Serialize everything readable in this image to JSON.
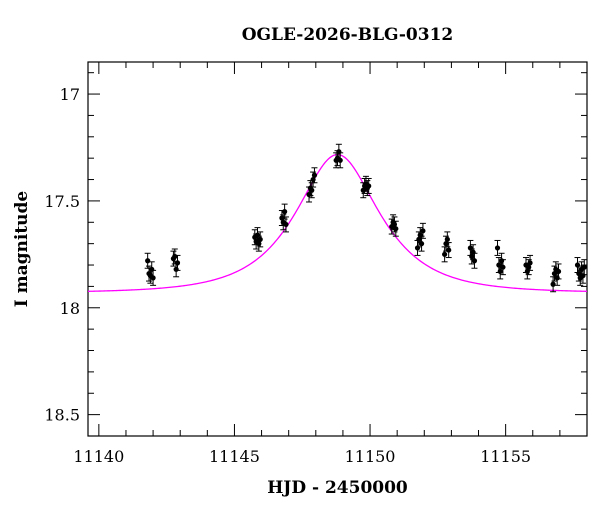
{
  "chart_data": {
    "type": "scatter",
    "title": "OGLE-2026-BLG-0312",
    "xlabel": "HJD - 2450000",
    "ylabel": "I magnitude",
    "xlim": [
      11139.6,
      11158.0
    ],
    "ylim": [
      18.6,
      16.85
    ],
    "y_inverted": true,
    "grid": false,
    "x_ticks": [
      11140,
      11145,
      11150,
      11155
    ],
    "y_ticks": [
      17,
      17.5,
      18,
      18.5
    ],
    "x_tick_labels": [
      "11140",
      "11145",
      "11150",
      "11155"
    ],
    "y_tick_labels": [
      "17",
      "17.5",
      "18",
      "18.5"
    ],
    "colors": {
      "points": "#000000",
      "model": "#ff00ff",
      "frame": "#000000"
    },
    "model": {
      "name": "",
      "type": "point-lens microlensing fit",
      "t0": 11148.8,
      "u0": 0.63,
      "tE": 2.35,
      "baseline_mag": 17.93
    },
    "series": [
      {
        "name": "",
        "x": [
          11141.8,
          11141.85,
          11141.9,
          11141.95,
          11142.0,
          11142.75,
          11142.8,
          11142.85,
          11142.9,
          11145.75,
          11145.8,
          11145.85,
          11145.9,
          11145.95,
          11146.75,
          11146.8,
          11146.85,
          11146.9,
          11147.75,
          11147.8,
          11147.85,
          11147.9,
          11147.95,
          11148.75,
          11148.8,
          11148.85,
          11148.9,
          11149.75,
          11149.8,
          11149.85,
          11149.9,
          11149.95,
          11150.8,
          11150.85,
          11150.9,
          11150.95,
          11151.75,
          11151.8,
          11151.85,
          11151.9,
          11151.95,
          11152.75,
          11152.8,
          11152.85,
          11152.9,
          11153.7,
          11153.75,
          11153.8,
          11153.85,
          11154.7,
          11154.75,
          11154.8,
          11154.85,
          11154.9,
          11155.75,
          11155.8,
          11155.85,
          11155.9,
          11156.75,
          11156.8,
          11156.85,
          11156.9,
          11156.95,
          11157.65,
          11157.7,
          11157.75,
          11157.8,
          11157.85,
          11157.9
        ],
        "y": [
          17.78,
          17.84,
          17.85,
          17.82,
          17.86,
          17.77,
          17.76,
          17.82,
          17.79,
          17.67,
          17.69,
          17.66,
          17.7,
          17.68,
          17.58,
          17.6,
          17.55,
          17.61,
          17.47,
          17.44,
          17.45,
          17.4,
          17.38,
          17.31,
          17.3,
          17.27,
          17.31,
          17.45,
          17.43,
          17.42,
          17.44,
          17.43,
          17.62,
          17.6,
          17.61,
          17.63,
          17.72,
          17.68,
          17.66,
          17.7,
          17.64,
          17.75,
          17.7,
          17.68,
          17.73,
          17.72,
          17.76,
          17.74,
          17.78,
          17.72,
          17.8,
          17.83,
          17.78,
          17.81,
          17.8,
          17.83,
          17.81,
          17.79,
          17.89,
          17.84,
          17.82,
          17.86,
          17.83,
          17.8,
          17.84,
          17.86,
          17.82,
          17.85,
          17.81
        ],
        "yerr": 0.035
      }
    ]
  }
}
